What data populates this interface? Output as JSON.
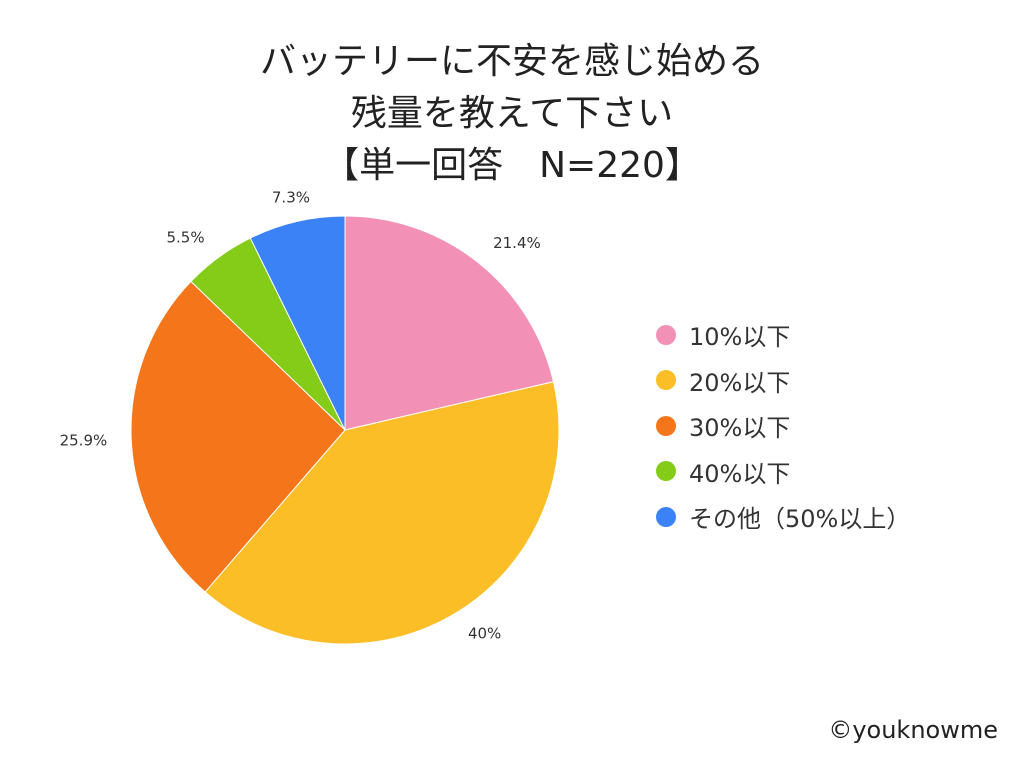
{
  "chart_data": {
    "type": "pie",
    "title_lines": [
      "バッテリーに不安を感じ始める",
      "残量を教えて下さい",
      "【単一回答　N=220】"
    ],
    "categories": [
      "10%以下",
      "20%以下",
      "30%以下",
      "40%以下",
      "その他（50%以上）"
    ],
    "values": [
      21.4,
      40,
      25.9,
      5.5,
      7.3
    ],
    "data_labels": [
      "21.4%",
      "40%",
      "25.9%",
      "5.5%",
      "7.3%"
    ],
    "colors": [
      "#F291B5",
      "#FBBE26",
      "#F5751B",
      "#84CC17",
      "#3B82F6"
    ],
    "start_angle_deg": 0,
    "direction": "clockwise",
    "legend_position": "right"
  },
  "footer": {
    "copyright": "©youknowme"
  }
}
